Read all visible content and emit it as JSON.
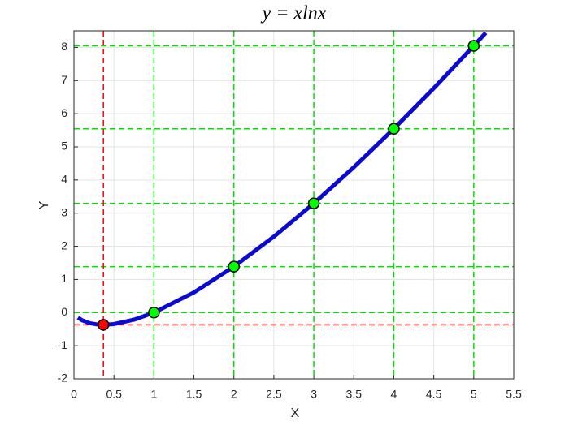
{
  "chart_data": {
    "type": "line",
    "title": "y = xlnx",
    "x_label": "X",
    "y_label": "Y",
    "x": [
      0.05,
      0.1,
      0.2,
      0.3,
      0.368,
      0.5,
      0.75,
      1,
      1.5,
      2,
      2.5,
      3,
      3.5,
      4,
      4.5,
      5,
      5.15
    ],
    "series": [
      {
        "color": "#0a0ad2",
        "values": [
          -0.15,
          -0.23,
          -0.322,
          -0.361,
          -0.368,
          -0.347,
          -0.216,
          0,
          0.608,
          1.386,
          2.291,
          3.296,
          4.385,
          5.545,
          6.768,
          8.047,
          8.441
        ]
      }
    ],
    "points": [
      {
        "color": "#00ff00",
        "line_color": "#00e000",
        "x": [
          1,
          2,
          3,
          4,
          5
        ],
        "values": [
          0,
          1.386,
          3.296,
          5.545,
          8.047
        ]
      },
      {
        "color": "#ff0000",
        "line_color": "#ff0000",
        "x": [
          0.368
        ],
        "values": [
          -0.368
        ]
      }
    ],
    "reference_lines": [
      {
        "y": 0,
        "color": "#000000"
      }
    ],
    "xlim": [
      0,
      5.5
    ],
    "xticks": [
      0,
      0.5,
      1,
      1.5,
      2,
      2.5,
      3,
      3.5,
      4,
      4.5,
      5,
      5.5
    ],
    "ylim": [
      -2,
      8.5
    ],
    "yticks": [
      -2,
      -1,
      0,
      1,
      2,
      3,
      4,
      5,
      6,
      7,
      8
    ],
    "grid": true
  }
}
